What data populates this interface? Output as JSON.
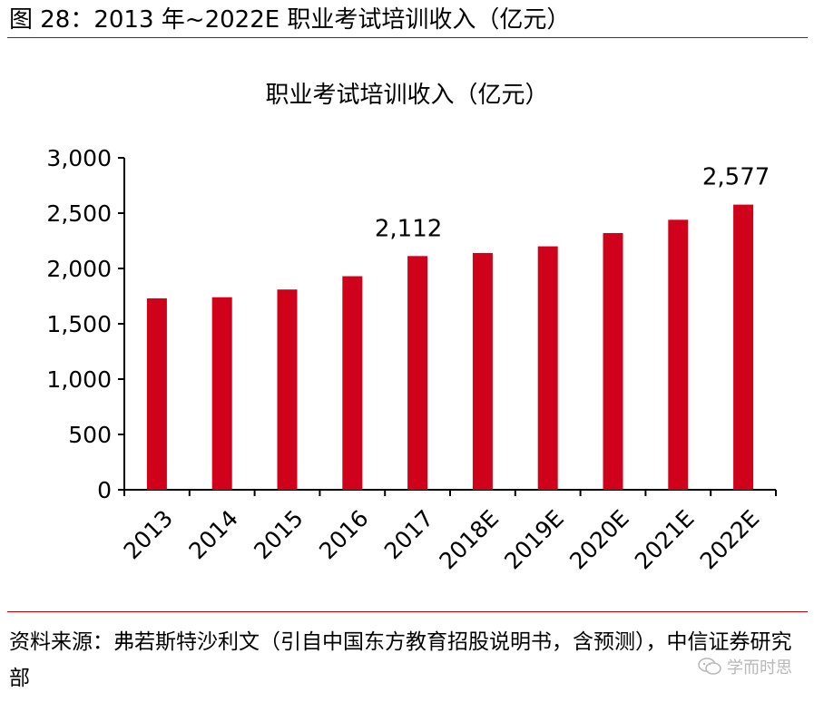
{
  "figure": {
    "title": "图 28：2013 年~2022E 职业考试培训收入（亿元）"
  },
  "chart_data": {
    "type": "bar",
    "title": "职业考试培训收入（亿元）",
    "categories": [
      "2013",
      "2014",
      "2015",
      "2016",
      "2017",
      "2018E",
      "2019E",
      "2020E",
      "2021E",
      "2022E"
    ],
    "series": [
      {
        "values": [
          1730,
          1740,
          1810,
          1930,
          2112,
          2140,
          2200,
          2320,
          2440,
          2577
        ]
      }
    ],
    "ylim": [
      0,
      3000
    ],
    "yticks": [
      0,
      500,
      1000,
      1500,
      2000,
      2500,
      3000
    ],
    "ytick_labels": [
      "0",
      "500",
      "1,000",
      "1,500",
      "2,000",
      "2,500",
      "3,000"
    ],
    "data_labels": [
      {
        "category": "2017",
        "text": "2,112"
      },
      {
        "category": "2022E",
        "text": "2,577"
      }
    ],
    "bar_color": "#d0021b",
    "grid": false,
    "legend": "none"
  },
  "source": {
    "text": "资料来源：弗若斯特沙利文（引自中国东方教育招股说明书，含预测），中信证券研究部"
  },
  "watermark": {
    "text": "学而时思"
  }
}
